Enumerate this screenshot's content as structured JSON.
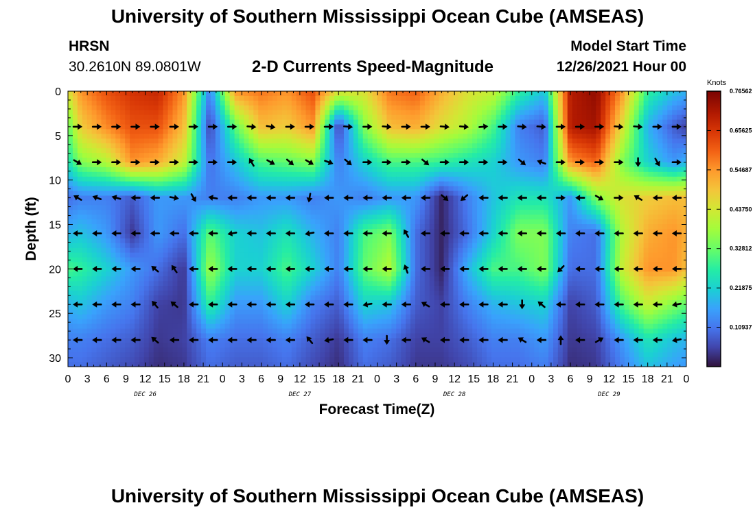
{
  "header": {
    "title": "University of Southern Mississippi Ocean Cube (AMSEAS)",
    "station": "HRSN",
    "coordinates": "30.2610N  89.0801W",
    "subtitle": "2-D Currents Speed-Magnitude",
    "model_start_label": "Model Start Time",
    "model_start_value": "12/26/2021 Hour 00"
  },
  "footer": {
    "title": "University of Southern Mississippi Ocean Cube (AMSEAS)"
  },
  "chart_data": {
    "type": "heatmap",
    "title": "2-D Currents Speed-Magnitude",
    "xlabel": "Forecast Time(Z)",
    "ylabel": "Depth (ft)",
    "xlim": [
      0,
      96
    ],
    "ylim": [
      0,
      31
    ],
    "x_ticks": [
      0,
      3,
      6,
      9,
      12,
      15,
      18,
      21,
      24,
      27,
      30,
      33,
      36,
      39,
      42,
      45,
      48,
      51,
      54,
      57,
      60,
      63,
      66,
      69,
      72,
      75,
      78,
      81,
      84,
      87,
      90,
      93,
      96
    ],
    "x_tick_labels": [
      "0",
      "3",
      "6",
      "9",
      "12",
      "15",
      "18",
      "21",
      "0",
      "3",
      "6",
      "9",
      "12",
      "15",
      "18",
      "21",
      "0",
      "3",
      "6",
      "9",
      "12",
      "15",
      "18",
      "21",
      "0",
      "3",
      "6",
      "9",
      "12",
      "15",
      "18",
      "21",
      "0"
    ],
    "date_labels": [
      {
        "hour": 12,
        "label": "DEC 26"
      },
      {
        "hour": 36,
        "label": "DEC 27"
      },
      {
        "hour": 60,
        "label": "DEC 28"
      },
      {
        "hour": 84,
        "label": "DEC 29"
      }
    ],
    "y_ticks": [
      0,
      5,
      10,
      15,
      20,
      25,
      30
    ],
    "y_tick_labels": [
      "0",
      "5",
      "10",
      "15",
      "20",
      "25",
      "30"
    ],
    "colorbar": {
      "title": "Knots",
      "min": 0,
      "max": 0.765625,
      "ticks": [
        0.109375,
        0.21875,
        0.328125,
        0.4375,
        0.546875,
        0.65625,
        0.765625
      ],
      "tick_labels": [
        "0.10937",
        "0.21875",
        "0.32812",
        "0.43750",
        "0.54687",
        "0.65625",
        "0.76562"
      ]
    },
    "speed_field": {
      "depths_ft": [
        0,
        4,
        8,
        12,
        16,
        20,
        24,
        28,
        31
      ],
      "hours": [
        0,
        2,
        6,
        10,
        14,
        18,
        22,
        26,
        30,
        34,
        38,
        42,
        46,
        50,
        54,
        58,
        62,
        66,
        70,
        74,
        78,
        82,
        86,
        90,
        94,
        96
      ],
      "knots": [
        [
          0.45,
          0.55,
          0.62,
          0.66,
          0.68,
          0.55,
          0.12,
          0.55,
          0.58,
          0.55,
          0.62,
          0.45,
          0.45,
          0.58,
          0.6,
          0.52,
          0.45,
          0.42,
          0.28,
          0.2,
          0.7,
          0.74,
          0.55,
          0.28,
          0.2,
          0.18
        ],
        [
          0.32,
          0.48,
          0.56,
          0.62,
          0.62,
          0.5,
          0.05,
          0.32,
          0.5,
          0.48,
          0.55,
          0.05,
          0.35,
          0.5,
          0.52,
          0.45,
          0.4,
          0.3,
          0.12,
          0.08,
          0.7,
          0.72,
          0.45,
          0.18,
          0.08,
          0.05
        ],
        [
          0.25,
          0.35,
          0.4,
          0.55,
          0.52,
          0.42,
          0.1,
          0.2,
          0.3,
          0.32,
          0.35,
          0.12,
          0.22,
          0.3,
          0.3,
          0.28,
          0.25,
          0.22,
          0.15,
          0.12,
          0.55,
          0.6,
          0.35,
          0.22,
          0.15,
          0.18
        ],
        [
          0.1,
          0.12,
          0.12,
          0.08,
          0.15,
          0.15,
          0.12,
          0.12,
          0.15,
          0.15,
          0.12,
          0.15,
          0.12,
          0.15,
          0.15,
          0.02,
          0.12,
          0.2,
          0.25,
          0.25,
          0.15,
          0.35,
          0.45,
          0.48,
          0.5,
          0.5
        ],
        [
          0.18,
          0.2,
          0.15,
          0.04,
          0.15,
          0.1,
          0.32,
          0.22,
          0.2,
          0.25,
          0.18,
          0.12,
          0.3,
          0.35,
          0.1,
          0.02,
          0.1,
          0.22,
          0.35,
          0.35,
          0.12,
          0.1,
          0.4,
          0.52,
          0.55,
          0.52
        ],
        [
          0.3,
          0.28,
          0.22,
          0.15,
          0.1,
          0.04,
          0.38,
          0.22,
          0.22,
          0.3,
          0.22,
          0.12,
          0.32,
          0.4,
          0.1,
          0.02,
          0.18,
          0.3,
          0.3,
          0.35,
          0.1,
          0.1,
          0.42,
          0.55,
          0.55,
          0.5
        ],
        [
          0.18,
          0.2,
          0.15,
          0.12,
          0.05,
          0.04,
          0.28,
          0.15,
          0.15,
          0.22,
          0.12,
          0.08,
          0.22,
          0.2,
          0.08,
          0.05,
          0.12,
          0.18,
          0.2,
          0.22,
          0.05,
          0.08,
          0.3,
          0.42,
          0.35,
          0.32
        ],
        [
          0.12,
          0.12,
          0.1,
          0.08,
          0.04,
          0.05,
          0.12,
          0.1,
          0.1,
          0.12,
          0.08,
          0.04,
          0.12,
          0.1,
          0.05,
          0.05,
          0.08,
          0.12,
          0.12,
          0.15,
          0.04,
          0.05,
          0.15,
          0.25,
          0.2,
          0.18
        ],
        [
          0.1,
          0.1,
          0.08,
          0.06,
          0.03,
          0.04,
          0.1,
          0.08,
          0.08,
          0.1,
          0.06,
          0.03,
          0.1,
          0.08,
          0.04,
          0.04,
          0.06,
          0.1,
          0.1,
          0.12,
          0.03,
          0.04,
          0.12,
          0.2,
          0.16,
          0.15
        ]
      ]
    },
    "vector_depths_ft": [
      4,
      8,
      12,
      16,
      20,
      24,
      28
    ],
    "vector_hours": [
      1.5,
      4.5,
      7.5,
      10.5,
      13.5,
      16.5,
      19.5,
      22.5,
      25.5,
      28.5,
      31.5,
      34.5,
      37.5,
      40.5,
      43.5,
      46.5,
      49.5,
      52.5,
      55.5,
      58.5,
      61.5,
      64.5,
      67.5,
      70.5,
      73.5,
      76.5,
      79.5,
      82.5,
      85.5,
      88.5,
      91.5,
      94.5
    ],
    "vector_directions_deg": [
      [
        0,
        0,
        0,
        0,
        0,
        0,
        0,
        0,
        0,
        5,
        10,
        0,
        0,
        0,
        5,
        0,
        5,
        0,
        0,
        5,
        5,
        -5,
        0,
        5,
        5,
        0,
        0,
        0,
        5,
        5,
        0,
        0
      ],
      [
        30,
        0,
        0,
        0,
        0,
        0,
        0,
        0,
        0,
        -120,
        30,
        40,
        30,
        20,
        40,
        0,
        0,
        0,
        40,
        0,
        0,
        0,
        0,
        40,
        -160,
        0,
        0,
        0,
        0,
        90,
        60,
        0
      ],
      [
        -150,
        -160,
        -165,
        180,
        180,
        10,
        60,
        -170,
        180,
        180,
        180,
        180,
        100,
        180,
        180,
        180,
        180,
        180,
        180,
        40,
        140,
        180,
        180,
        180,
        180,
        0,
        180,
        30,
        0,
        -150,
        180,
        180
      ],
      [
        180,
        180,
        180,
        180,
        180,
        180,
        180,
        180,
        170,
        180,
        180,
        180,
        170,
        180,
        180,
        180,
        180,
        -120,
        180,
        180,
        180,
        180,
        180,
        180,
        180,
        180,
        180,
        180,
        180,
        180,
        180,
        180
      ],
      [
        180,
        180,
        180,
        180,
        -140,
        -125,
        180,
        180,
        180,
        180,
        180,
        180,
        180,
        180,
        180,
        180,
        180,
        -110,
        180,
        180,
        180,
        180,
        180,
        180,
        180,
        135,
        180,
        180,
        180,
        180,
        180,
        180
      ],
      [
        180,
        180,
        180,
        180,
        -130,
        -140,
        180,
        180,
        180,
        180,
        180,
        180,
        180,
        180,
        180,
        170,
        180,
        180,
        -150,
        180,
        180,
        180,
        180,
        90,
        -140,
        180,
        180,
        180,
        180,
        180,
        180,
        170
      ],
      [
        180,
        180,
        180,
        180,
        -140,
        180,
        180,
        180,
        180,
        180,
        180,
        180,
        -130,
        170,
        180,
        180,
        90,
        180,
        -150,
        180,
        180,
        180,
        180,
        -150,
        180,
        -90,
        180,
        -30,
        180,
        180,
        180,
        170
      ]
    ]
  }
}
